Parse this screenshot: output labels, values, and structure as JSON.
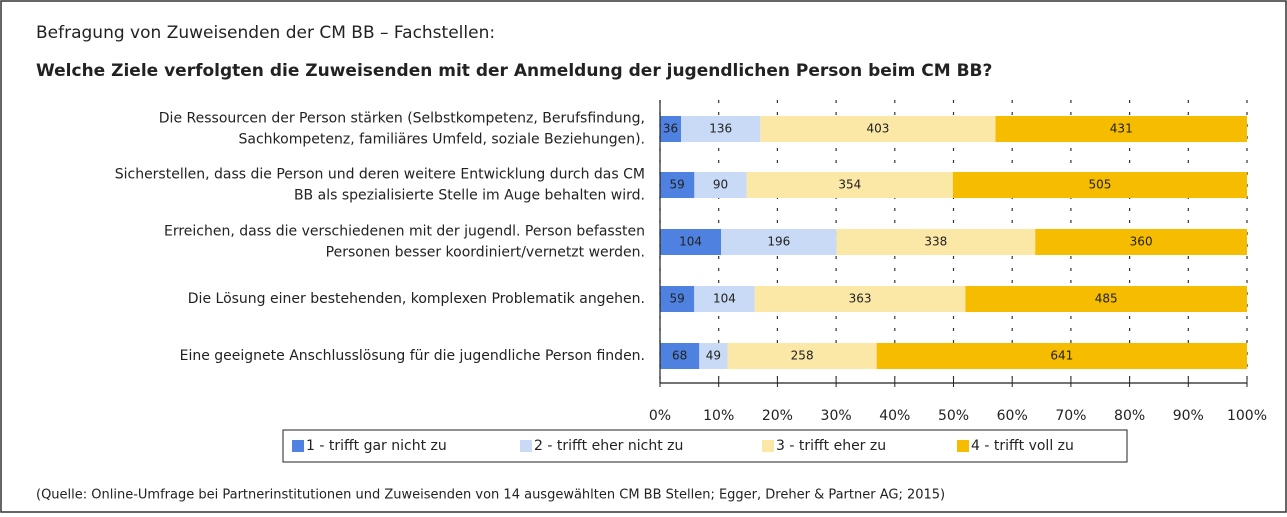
{
  "header": {
    "title": "Befragung von Zuweisenden der CM BB – Fachstellen:"
  },
  "chart_data": {
    "type": "bar",
    "orientation": "horizontal",
    "stacked": true,
    "normalize": true,
    "title": "Welche Ziele verfolgten die Zuweisenden mit der Anmeldung der jugendlichen Person beim CM BB?",
    "categories": [
      [
        "Die Ressourcen der Person stärken (Selbstkompetenz, Berufsfindung,",
        "Sachkompetenz, familiäres Umfeld, soziale Beziehungen)."
      ],
      [
        "Sicherstellen, dass die Person und deren weitere Entwicklung durch das CM",
        "BB als spezialisierte Stelle im Auge behalten wird."
      ],
      [
        "Erreichen, dass die verschiedenen mit der jugendl. Person befassten",
        "Personen besser koordiniert/vernetzt werden."
      ],
      [
        "Die Lösung einer bestehenden, komplexen Problematik angehen."
      ],
      [
        "Eine geeignete Anschlusslösung für die jugendliche Person finden."
      ]
    ],
    "series": [
      {
        "name": "1 - trifft gar nicht zu",
        "color": "#4f81e0",
        "values": [
          36,
          59,
          104,
          59,
          68
        ]
      },
      {
        "name": "2 - trifft eher nicht zu",
        "color": "#c9daf6",
        "values": [
          136,
          90,
          196,
          104,
          49
        ]
      },
      {
        "name": "3 - trifft eher zu",
        "color": "#fbe8a6",
        "values": [
          403,
          354,
          338,
          363,
          258
        ]
      },
      {
        "name": "4 - trifft voll zu",
        "color": "#f6bc00",
        "values": [
          431,
          505,
          360,
          485,
          641
        ]
      }
    ],
    "xlim": [
      0,
      100
    ],
    "xticks": [
      {
        "value": 0,
        "label": "0%"
      },
      {
        "value": 10,
        "label": "10%"
      },
      {
        "value": 20,
        "label": "20%"
      },
      {
        "value": 30,
        "label": "30%"
      },
      {
        "value": 40,
        "label": "40%"
      },
      {
        "value": 50,
        "label": "50%"
      },
      {
        "value": 60,
        "label": "60%"
      },
      {
        "value": 70,
        "label": "70%"
      },
      {
        "value": 80,
        "label": "80%"
      },
      {
        "value": 90,
        "label": "90%"
      },
      {
        "value": 100,
        "label": "100%"
      }
    ],
    "grid": true,
    "legend": "bottom"
  },
  "footer": {
    "source": "(Quelle: Online-Umfrage bei Partnerinstitutionen und Zuweisenden von 14 ausgewählten CM BB Stellen; Egger, Dreher & Partner AG; 2015)"
  }
}
